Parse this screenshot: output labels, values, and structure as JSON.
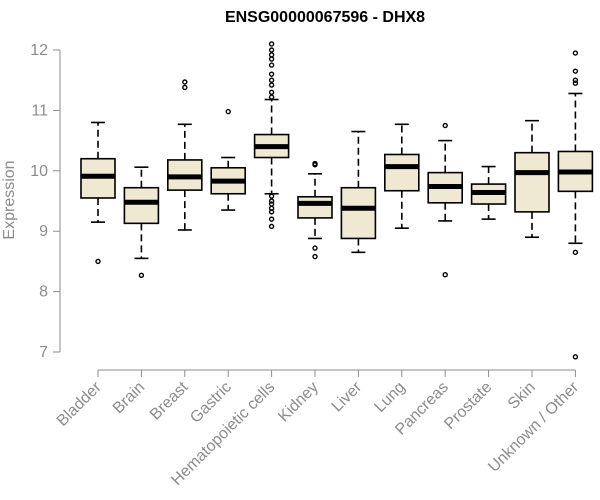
{
  "chart_data": {
    "type": "box",
    "title": "ENSG00000067596 - DHX8",
    "xlabel": "",
    "ylabel": "Expression",
    "ylim": [
      6.8,
      12.2
    ],
    "yticks": [
      7,
      8,
      9,
      10,
      11,
      12
    ],
    "box_fill": "#efe8d2",
    "categories": [
      "Bladder",
      "Brain",
      "Breast",
      "Gastric",
      "Hematopoietic cells",
      "Kidney",
      "Liver",
      "Lung",
      "Pancreas",
      "Prostate",
      "Skin",
      "Unknown / Other"
    ],
    "boxes": [
      {
        "label": "Bladder",
        "whisker_low": 9.15,
        "q1": 9.55,
        "median": 9.91,
        "q3": 10.2,
        "whisker_high": 10.8,
        "outliers": [
          8.5
        ]
      },
      {
        "label": "Brain",
        "whisker_low": 8.55,
        "q1": 9.13,
        "median": 9.48,
        "q3": 9.72,
        "whisker_high": 10.06,
        "outliers": [
          8.27
        ]
      },
      {
        "label": "Breast",
        "whisker_low": 9.02,
        "q1": 9.68,
        "median": 9.9,
        "q3": 10.18,
        "whisker_high": 10.77,
        "outliers": [
          11.38,
          11.47
        ]
      },
      {
        "label": "Gastric",
        "whisker_low": 9.35,
        "q1": 9.62,
        "median": 9.83,
        "q3": 10.05,
        "whisker_high": 10.22,
        "outliers": [
          10.98
        ]
      },
      {
        "label": "Hematopoietic cells",
        "whisker_low": 9.62,
        "q1": 10.22,
        "median": 10.4,
        "q3": 10.6,
        "whisker_high": 11.18,
        "outliers": [
          9.08,
          9.2,
          9.32,
          9.38,
          9.45,
          9.5,
          9.58,
          11.22,
          11.3,
          11.42,
          11.5,
          11.6,
          11.75,
          11.85,
          11.92,
          12.0,
          12.1
        ]
      },
      {
        "label": "Kidney",
        "whisker_low": 8.88,
        "q1": 9.22,
        "median": 9.46,
        "q3": 9.57,
        "whisker_high": 9.95,
        "outliers": [
          8.58,
          8.72,
          10.1,
          10.12
        ]
      },
      {
        "label": "Liver",
        "whisker_low": 8.65,
        "q1": 8.88,
        "median": 9.38,
        "q3": 9.72,
        "whisker_high": 10.65,
        "outliers": []
      },
      {
        "label": "Lung",
        "whisker_low": 9.05,
        "q1": 9.67,
        "median": 10.07,
        "q3": 10.27,
        "whisker_high": 10.77,
        "outliers": []
      },
      {
        "label": "Pancreas",
        "whisker_low": 9.17,
        "q1": 9.47,
        "median": 9.74,
        "q3": 9.97,
        "whisker_high": 10.5,
        "outliers": [
          8.28,
          10.75
        ]
      },
      {
        "label": "Prostate",
        "whisker_low": 9.2,
        "q1": 9.45,
        "median": 9.64,
        "q3": 9.78,
        "whisker_high": 10.07,
        "outliers": []
      },
      {
        "label": "Skin",
        "whisker_low": 8.9,
        "q1": 9.32,
        "median": 9.97,
        "q3": 10.3,
        "whisker_high": 10.83,
        "outliers": []
      },
      {
        "label": "Unknown / Other",
        "whisker_low": 8.8,
        "q1": 9.66,
        "median": 9.98,
        "q3": 10.32,
        "whisker_high": 11.28,
        "outliers": [
          6.92,
          8.65,
          11.45,
          11.5,
          11.65,
          11.95
        ]
      }
    ]
  }
}
